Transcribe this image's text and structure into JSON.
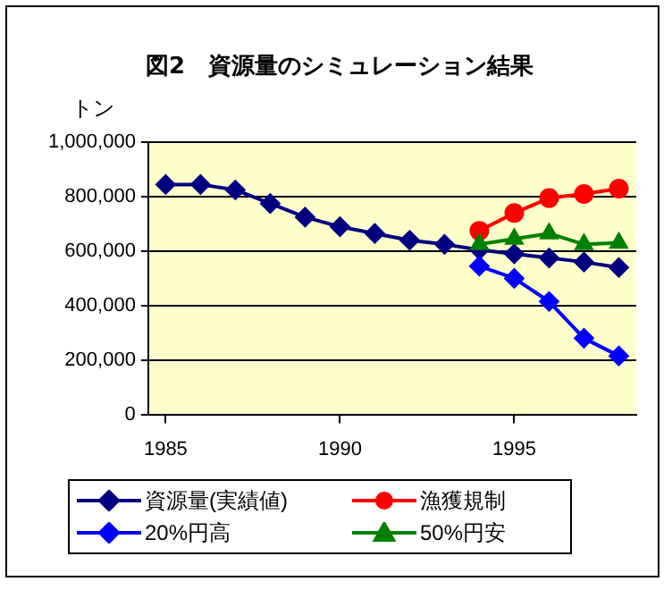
{
  "chart_data": {
    "type": "line",
    "title": "図2　資源量のシミュレーション結果",
    "ylabel": "トン",
    "x": [
      1985,
      1986,
      1987,
      1988,
      1989,
      1990,
      1991,
      1992,
      1993,
      1994,
      1995,
      1996,
      1997,
      1998
    ],
    "series": [
      {
        "name": "資源量(実績値)",
        "color": "#000080",
        "marker": "diamond",
        "values": [
          845000,
          845000,
          825000,
          775000,
          725000,
          690000,
          665000,
          640000,
          625000,
          605000,
          590000,
          575000,
          560000,
          540000
        ]
      },
      {
        "name": "漁獲規制",
        "color": "#ff0000",
        "marker": "circle",
        "values": [
          null,
          null,
          null,
          null,
          null,
          null,
          null,
          null,
          null,
          675000,
          740000,
          795000,
          810000,
          830000
        ]
      },
      {
        "name": "20%円高",
        "color": "#0000ff",
        "marker": "diamond",
        "values": [
          null,
          null,
          null,
          null,
          null,
          null,
          null,
          null,
          null,
          545000,
          500000,
          415000,
          280000,
          215000
        ]
      },
      {
        "name": "50%円安",
        "color": "#008000",
        "marker": "triangle",
        "values": [
          null,
          null,
          null,
          null,
          null,
          null,
          null,
          null,
          null,
          625000,
          645000,
          665000,
          625000,
          630000
        ]
      }
    ],
    "xlim": [
      1984.5,
      1998.5
    ],
    "xticks": [
      1985,
      1990,
      1995
    ],
    "ylim": [
      0,
      1000000
    ],
    "yticks": [
      0,
      {
        "value": 200000,
        "label": "200,000"
      },
      {
        "value": 400000,
        "label": "400,000"
      },
      {
        "value": 600000,
        "label": "600,000"
      },
      {
        "value": 800000,
        "label": "800,000"
      },
      {
        "value": 1000000,
        "label": "1,000,000"
      }
    ],
    "grid": "y",
    "legend": "bottom"
  }
}
